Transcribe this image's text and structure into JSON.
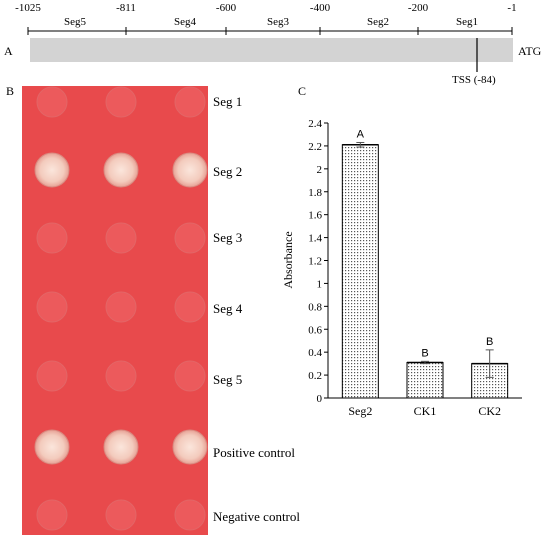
{
  "panel_a": {
    "label": "A",
    "ticks": [
      "-1025",
      "-811",
      "-600",
      "-400",
      "-200",
      "-1"
    ],
    "segments": [
      "Seg5",
      "Seg4",
      "Seg3",
      "Seg2",
      "Seg1"
    ],
    "atg": "ATG",
    "tss": "TSS (-84)"
  },
  "panel_b": {
    "label": "B",
    "rows": [
      {
        "label": "Seg 1",
        "spots": [
          "faint",
          "faint",
          "faint"
        ]
      },
      {
        "label": "Seg 2",
        "spots": [
          "strong",
          "strong",
          "strong"
        ]
      },
      {
        "label": "Seg 3",
        "spots": [
          "faint",
          "faint",
          "faint"
        ]
      },
      {
        "label": "Seg 4",
        "spots": [
          "faint",
          "faint",
          "faint"
        ]
      },
      {
        "label": "Seg 5",
        "spots": [
          "faint",
          "faint",
          "faint"
        ]
      },
      {
        "label": "Positive control",
        "spots": [
          "strong",
          "strong",
          "strong"
        ]
      },
      {
        "label": "Negative control",
        "spots": [
          "faint",
          "faint",
          "faint"
        ]
      }
    ],
    "colors": {
      "plate": "#e84a4c",
      "strong_spot": "#f6d6c8",
      "faint_spot": "#ec5a5c"
    }
  },
  "panel_c": {
    "label": "C",
    "chart_data": {
      "type": "bar",
      "categories": [
        "Seg2",
        "CK1",
        "CK2"
      ],
      "values": [
        2.21,
        0.31,
        0.3
      ],
      "errors": [
        0.02,
        0.01,
        0.12
      ],
      "letters": [
        "A",
        "B",
        "B"
      ],
      "ylabel": "Absorbance",
      "ylim": [
        0,
        2.4
      ],
      "yticks": [
        "0",
        "0.2",
        "0.4",
        "0.6",
        "0.8",
        "1",
        "1.2",
        "1.4",
        "1.6",
        "1.8",
        "2",
        "2.2",
        "2.4"
      ],
      "grid": false,
      "bar_fill": "dotted"
    }
  }
}
